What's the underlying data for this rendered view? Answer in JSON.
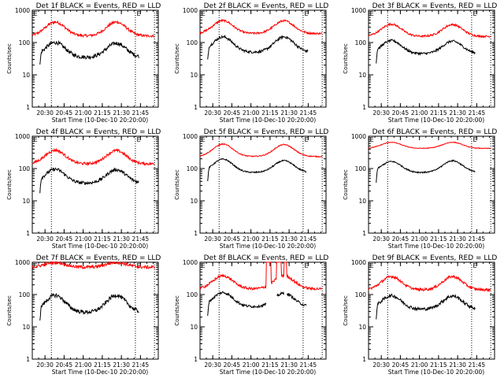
{
  "chart_data": {
    "type": "line",
    "layout": "3x3 grid",
    "x_range": [
      "20:20",
      "21:59"
    ],
    "x_start": "20:20",
    "xtick_labels": [
      "20:30",
      "20:45",
      "21:00",
      "21:15",
      "21:30",
      "21:45"
    ],
    "xtick_minutes": [
      10,
      25,
      40,
      55,
      70,
      85
    ],
    "x_span_minutes": 99,
    "xlabel": "Start Time (10-Dec-10 20:20:00)",
    "ylabel": "Counts/sec",
    "yscale": "log",
    "ylim": [
      1,
      1000
    ],
    "ytick_labels": [
      "1",
      "10",
      "100",
      "1000"
    ],
    "ytick_values": [
      1,
      10,
      100,
      1000
    ],
    "vlines_minutes": [
      15,
      81,
      96
    ],
    "markers": [
      {
        "label": "E",
        "minute": 1
      },
      {
        "label": "E",
        "minute": 82
      }
    ],
    "series_colors": {
      "events": "#000000",
      "lld": "#ff0000"
    },
    "legend_text": "BLACK = Events, RED = LLD",
    "panels": [
      {
        "title": "Det 1f BLACK = Events, RED = LLD",
        "events": {
          "start": 6,
          "end": 84,
          "base": 35,
          "peak1": 100,
          "peak2": 95,
          "noise": 0.12
        },
        "lld": {
          "start": 0,
          "end": 96,
          "base": 160,
          "peak1": 430,
          "peak2": 430,
          "noise": 0.08
        }
      },
      {
        "title": "Det 2f BLACK = Events, RED = LLD",
        "events": {
          "start": 6,
          "end": 85,
          "base": 50,
          "peak1": 150,
          "peak2": 150,
          "noise": 0.08
        },
        "lld": {
          "start": 0,
          "end": 96,
          "base": 190,
          "peak1": 480,
          "peak2": 470,
          "noise": 0.06
        }
      },
      {
        "title": "Det 3f BLACK = Events, RED = LLD",
        "events": {
          "start": 6,
          "end": 84,
          "base": 45,
          "peak1": 115,
          "peak2": 110,
          "noise": 0.07
        },
        "lld": {
          "start": 0,
          "end": 96,
          "base": 155,
          "peak1": 370,
          "peak2": 360,
          "noise": 0.06
        }
      },
      {
        "title": "Det 4f BLACK = Events, RED = LLD",
        "events": {
          "start": 6,
          "end": 84,
          "base": 35,
          "peak1": 95,
          "peak2": 92,
          "noise": 0.1
        },
        "lld": {
          "start": 0,
          "end": 96,
          "base": 140,
          "peak1": 370,
          "peak2": 360,
          "noise": 0.08
        }
      },
      {
        "title": "Det 5f BLACK = Events, RED = LLD",
        "events": {
          "start": 6,
          "end": 84,
          "base": 75,
          "peak1": 195,
          "peak2": 175,
          "noise": 0.04
        },
        "lld": {
          "start": 0,
          "end": 96,
          "base": 235,
          "peak1": 570,
          "peak2": 550,
          "noise": 0.03
        }
      },
      {
        "title": "Det 6f BLACK = Events, RED = LLD",
        "events": {
          "start": 6,
          "end": 84,
          "base": 75,
          "peak1": 165,
          "peak2": 175,
          "noise": 0.04
        },
        "lld": {
          "start": 0,
          "end": 96,
          "base": 420,
          "peak1": 650,
          "peak2": 650,
          "noise": 0.02
        }
      },
      {
        "title": "Det 7f BLACK = Events, RED = LLD",
        "events": {
          "start": 6,
          "end": 84,
          "base": 28,
          "peak1": 95,
          "peak2": 95,
          "noise": 0.12
        },
        "lld": {
          "start": 0,
          "end": 96,
          "base": 700,
          "peak1": 1000,
          "peak2": 1000,
          "noise": 0.1
        }
      },
      {
        "title": "Det 8f BLACK = Events, RED = LLD",
        "events": {
          "start": 6,
          "end": 84,
          "base": 42,
          "peak1": 115,
          "peak2": 110,
          "noise": 0.08,
          "gaps": [
            [
              52,
              60
            ],
            [
              66,
              68
            ]
          ]
        },
        "lld": {
          "start": 0,
          "end": 96,
          "base": 150,
          "peak1": 380,
          "peak2": 380,
          "noise": 0.08,
          "spikes": [
            [
              52,
              56
            ],
            [
              60,
              64
            ],
            [
              66,
              68
            ]
          ]
        }
      },
      {
        "title": "Det 9f BLACK = Events, RED = LLD",
        "events": {
          "start": 6,
          "end": 84,
          "base": 35,
          "peak1": 92,
          "peak2": 90,
          "noise": 0.1
        },
        "lld": {
          "start": 0,
          "end": 96,
          "base": 140,
          "peak1": 360,
          "peak2": 360,
          "noise": 0.08
        }
      }
    ]
  }
}
